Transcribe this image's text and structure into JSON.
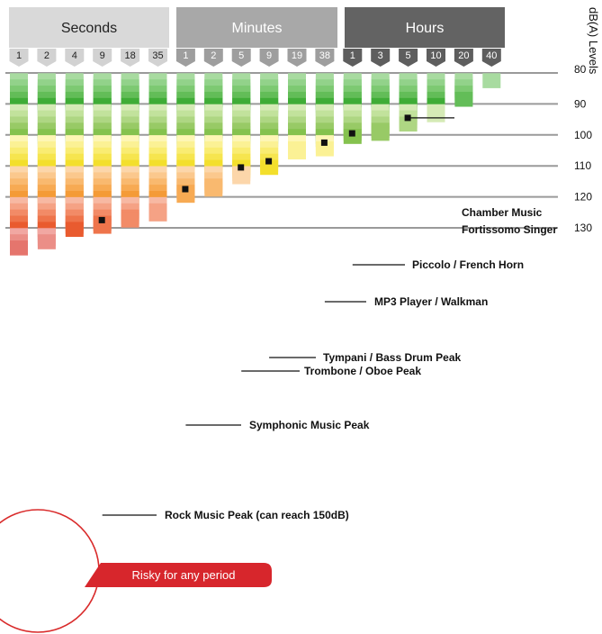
{
  "chart_data": {
    "type": "heatmap",
    "title": "",
    "ylabel": "dB(A) Levels",
    "ylim": [
      80,
      135
    ],
    "y_ticks": [
      80,
      90,
      100,
      110,
      120,
      130
    ],
    "groups": [
      {
        "label": "Seconds",
        "durations": [
          1,
          2,
          4,
          9,
          18,
          35
        ]
      },
      {
        "label": "Minutes",
        "durations": [
          1,
          2,
          5,
          9,
          19,
          38
        ]
      },
      {
        "label": "Hours",
        "durations": [
          1,
          3,
          5,
          10,
          20,
          40
        ]
      }
    ],
    "columns_max_db": [
      135,
      133,
      129,
      128,
      126,
      124,
      118,
      116,
      112,
      109,
      104,
      103,
      99,
      98,
      95,
      92,
      87,
      81
    ],
    "annotations": [
      {
        "label": "Chamber Music",
        "label2": "Fortissomo Singer",
        "db": 94.5,
        "column": 15
      },
      {
        "label": "Piccolo / French Horn",
        "db": 99.5,
        "column": 13
      },
      {
        "label": "MP3 Player / Walkman",
        "db": 102.5,
        "column": 12
      },
      {
        "label": "Tympani / Bass Drum Peak",
        "db": 108.5,
        "column": 10
      },
      {
        "label": "Trombone / Oboe Peak",
        "db": 110.5,
        "column": 9
      },
      {
        "label": "Symphonic Music Peak",
        "db": 117.5,
        "column": 7
      },
      {
        "label": "Rock Music Peak (can reach 150dB)",
        "db": 127.5,
        "column": 4
      }
    ],
    "risk_label": "Risky for any period",
    "band_colors": {
      "80": [
        "#a8dba0",
        "#92d28a",
        "#7dc972",
        "#63bd58",
        "#3fac37"
      ],
      "90": [
        "#d5eab6",
        "#c2e29c",
        "#aed683",
        "#98ca66",
        "#85c24e"
      ],
      "100": [
        "#fdf6b5",
        "#fbf195",
        "#f9ec72",
        "#f6e54f",
        "#f3df2c"
      ],
      "110": [
        "#fcd6aa",
        "#fbc88d",
        "#f9b96f",
        "#f7aa53",
        "#f49b37"
      ],
      "120": [
        "#f7b9a3",
        "#f5a285",
        "#f28b67",
        "#ee744b",
        "#e95b2f"
      ],
      "130": [
        "#f1a7a2",
        "#eb8e87",
        "#e5756d",
        "#de5a53",
        "#d73c38"
      ]
    },
    "tab_colors": {
      "Seconds": "#d9d9d9",
      "Minutes": "#a8a8a8",
      "Hours": "#636363"
    }
  }
}
